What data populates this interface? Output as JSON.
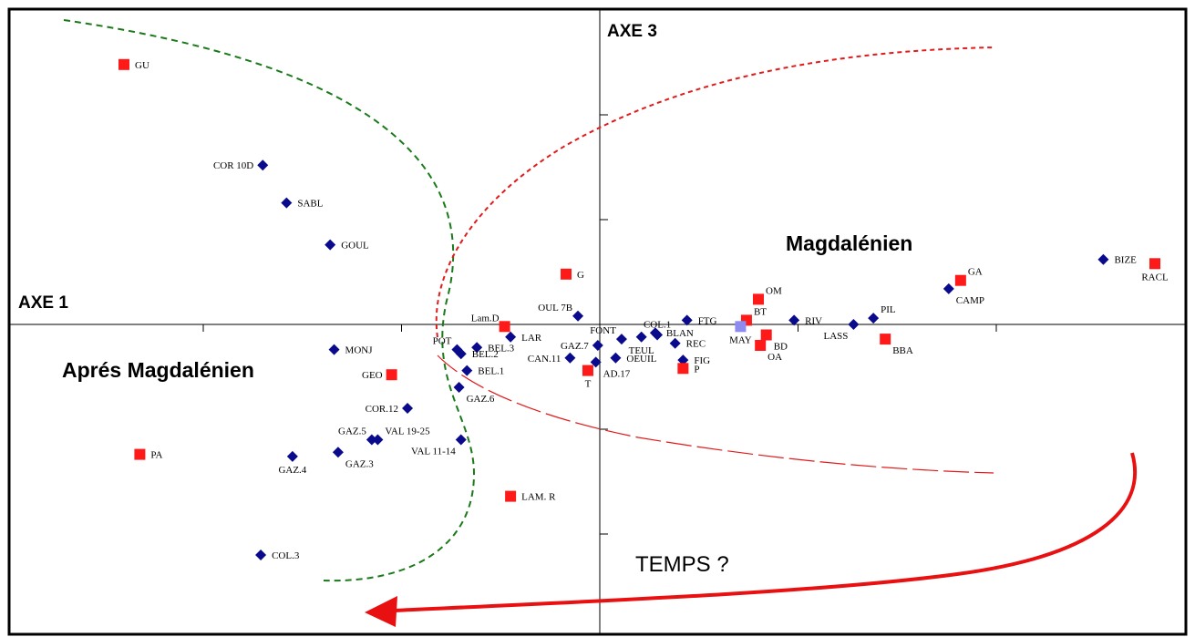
{
  "chart_data": {
    "type": "scatter",
    "xlabel": "AXE 1",
    "ylabel": "AXE 3",
    "annotations": {
      "group_right": "Magdalénien",
      "group_left": "Aprés Magdalénien",
      "arrow_label": "TEMPS ?"
    },
    "colors": {
      "blue_points": "#0a0a8c",
      "red_points": "#ff1a1a",
      "highlight_point": "#8c8cf0",
      "green_curve": "#1a7a1a",
      "red_curve": "#e11b1b",
      "arrow": "#e81010"
    },
    "xlim": [
      -3.0,
      3.0
    ],
    "ylim": [
      -1.4,
      1.5
    ],
    "series": [
      {
        "marker": "diamond",
        "color": "blue",
        "points": [
          {
            "label": "COR 10D",
            "x": -1.7,
            "y": 0.76,
            "anchor": "left"
          },
          {
            "label": "SABL",
            "x": -1.58,
            "y": 0.58,
            "anchor": "right"
          },
          {
            "label": "GOUL",
            "x": -1.36,
            "y": 0.38,
            "anchor": "right"
          },
          {
            "label": "MONJ",
            "x": -1.34,
            "y": -0.12,
            "anchor": "right"
          },
          {
            "label": "COR.12",
            "x": -0.97,
            "y": -0.4,
            "anchor": "left"
          },
          {
            "label": "GAZ.5",
            "x": -1.15,
            "y": -0.55,
            "anchor": "left-top"
          },
          {
            "label": "VAL 19-25",
            "x": -1.12,
            "y": -0.55,
            "anchor": "right-top"
          },
          {
            "label": "VAL 11-14",
            "x": -0.7,
            "y": -0.55,
            "anchor": "left-below"
          },
          {
            "label": "GAZ.3",
            "x": -1.32,
            "y": -0.61,
            "anchor": "right-below"
          },
          {
            "label": "GAZ.4",
            "x": -1.55,
            "y": -0.63,
            "anchor": "below"
          },
          {
            "label": "COL.3",
            "x": -1.71,
            "y": -1.1,
            "anchor": "right"
          },
          {
            "label": "POT",
            "x": -0.72,
            "y": -0.12,
            "anchor": "left-top"
          },
          {
            "label": "BEL.3",
            "x": -0.62,
            "y": -0.11,
            "anchor": "right"
          },
          {
            "label": "BEL.2",
            "x": -0.7,
            "y": -0.14,
            "anchor": "right"
          },
          {
            "label": "BEL.1",
            "x": -0.67,
            "y": -0.22,
            "anchor": "right"
          },
          {
            "label": "GAZ.6",
            "x": -0.71,
            "y": -0.3,
            "anchor": "right-below"
          },
          {
            "label": "LAR",
            "x": -0.45,
            "y": -0.06,
            "anchor": "right"
          },
          {
            "label": "OUL 7B",
            "x": -0.11,
            "y": 0.04,
            "anchor": "left-top"
          },
          {
            "label": "GAZ.7",
            "x": -0.01,
            "y": -0.1,
            "anchor": "left"
          },
          {
            "label": "CAN.11",
            "x": -0.15,
            "y": -0.16,
            "anchor": "left"
          },
          {
            "label": "AD.17",
            "x": -0.02,
            "y": -0.18,
            "anchor": "right-below"
          },
          {
            "label": "FONT",
            "x": 0.11,
            "y": -0.07,
            "anchor": "left-top"
          },
          {
            "label": "TEUL",
            "x": 0.21,
            "y": -0.06,
            "anchor": "below"
          },
          {
            "label": "OEUIL",
            "x": 0.08,
            "y": -0.16,
            "anchor": "right"
          },
          {
            "label": "COL.1",
            "x": 0.29,
            "y": -0.05,
            "anchor": "top"
          },
          {
            "label": "BLAN",
            "x": 0.28,
            "y": -0.04,
            "anchor": "right"
          },
          {
            "label": "FIG",
            "x": 0.42,
            "y": -0.17,
            "anchor": "right"
          },
          {
            "label": "REC",
            "x": 0.38,
            "y": -0.09,
            "anchor": "right"
          },
          {
            "label": "FTG",
            "x": 0.44,
            "y": 0.02,
            "anchor": "right"
          },
          {
            "label": "RIV",
            "x": 0.98,
            "y": 0.02,
            "anchor": "right"
          },
          {
            "label": "LASS",
            "x": 1.28,
            "y": 0.0,
            "anchor": "left-below"
          },
          {
            "label": "PIL",
            "x": 1.38,
            "y": 0.03,
            "anchor": "right-top"
          },
          {
            "label": "CAMP",
            "x": 1.76,
            "y": 0.17,
            "anchor": "right-below"
          },
          {
            "label": "BIZE",
            "x": 2.54,
            "y": 0.31,
            "anchor": "right"
          }
        ]
      },
      {
        "marker": "square",
        "color": "red",
        "points": [
          {
            "label": "GU",
            "x": -2.4,
            "y": 1.24,
            "anchor": "right"
          },
          {
            "label": "G",
            "x": -0.17,
            "y": 0.24,
            "anchor": "right"
          },
          {
            "label": "Lam.D",
            "x": -0.48,
            "y": -0.01,
            "anchor": "left-top"
          },
          {
            "label": "GEO",
            "x": -1.05,
            "y": -0.24,
            "anchor": "left"
          },
          {
            "label": "T",
            "x": -0.06,
            "y": -0.22,
            "anchor": "below"
          },
          {
            "label": "P",
            "x": 0.42,
            "y": -0.21,
            "anchor": "right"
          },
          {
            "label": "PA",
            "x": -2.32,
            "y": -0.62,
            "anchor": "right"
          },
          {
            "label": "LAM. R",
            "x": -0.45,
            "y": -0.82,
            "anchor": "right"
          },
          {
            "label": "OM",
            "x": 0.8,
            "y": 0.12,
            "anchor": "right-top"
          },
          {
            "label": "BT",
            "x": 0.74,
            "y": 0.02,
            "anchor": "right-top"
          },
          {
            "label": "BD",
            "x": 0.84,
            "y": -0.05,
            "anchor": "right-below"
          },
          {
            "label": "OA",
            "x": 0.81,
            "y": -0.1,
            "anchor": "right-below"
          },
          {
            "label": "BBA",
            "x": 1.44,
            "y": -0.07,
            "anchor": "right-below"
          },
          {
            "label": "GA",
            "x": 1.82,
            "y": 0.21,
            "anchor": "right-top"
          },
          {
            "label": "RACL",
            "x": 2.8,
            "y": 0.29,
            "anchor": "below"
          }
        ]
      },
      {
        "marker": "square",
        "color": "highlight",
        "points": [
          {
            "label": "MAY",
            "x": 0.71,
            "y": -0.01,
            "anchor": "below"
          }
        ]
      }
    ]
  }
}
